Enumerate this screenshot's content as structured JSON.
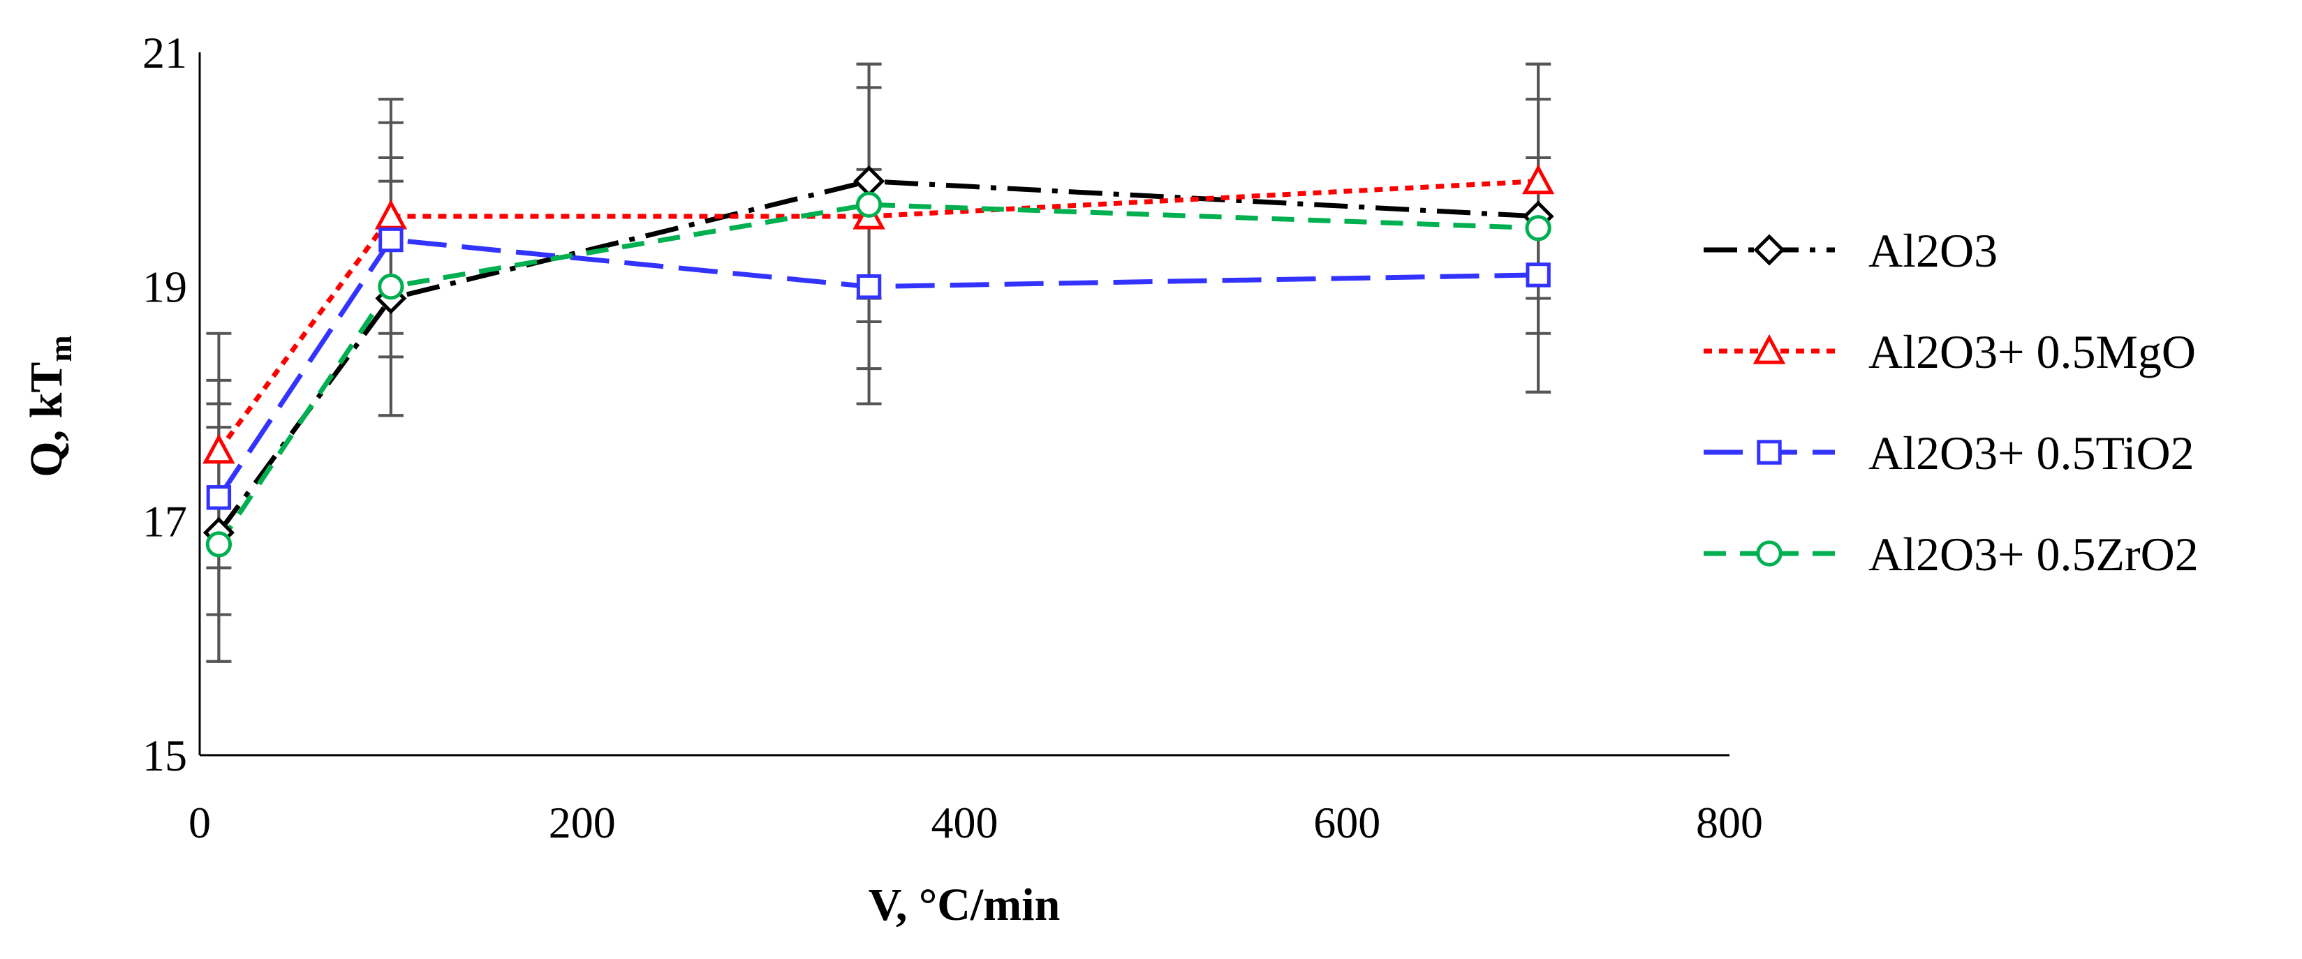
{
  "chart_data": {
    "type": "line",
    "title": "",
    "xlabel": "V, °C/min",
    "ylabel_main": "Q, kT",
    "ylabel_sub": "m",
    "xlim": [
      0,
      800
    ],
    "ylim": [
      15,
      21
    ],
    "xticks": [
      0,
      200,
      400,
      600,
      800
    ],
    "yticks": [
      15,
      17,
      19,
      21
    ],
    "x": [
      10,
      100,
      350,
      700
    ],
    "legend_position": "right",
    "grid": false,
    "series": [
      {
        "name": "Al2O3",
        "color": "#000000",
        "dash": "dashdot",
        "marker": "diamond",
        "values": [
          16.9,
          18.9,
          19.9,
          19.6
        ],
        "errors": [
          1.1,
          1.0,
          1.0,
          1.0
        ]
      },
      {
        "name": "Al2O3+ 0.5MgO",
        "color": "#ff0000",
        "dash": "dot",
        "marker": "triangle",
        "values": [
          17.6,
          19.6,
          19.6,
          19.9
        ],
        "errors": [
          1.0,
          1.0,
          1.3,
          1.0
        ]
      },
      {
        "name": "Al2O3+ 0.5TiO2",
        "color": "#3333ff",
        "dash": "longdash",
        "marker": "square",
        "values": [
          17.2,
          19.4,
          19.0,
          19.1
        ],
        "errors": [
          1.0,
          1.0,
          1.0,
          1.0
        ]
      },
      {
        "name": "Al2O3+ 0.5ZrO2",
        "color": "#00b050",
        "dash": "dash",
        "marker": "circle",
        "values": [
          16.8,
          19.0,
          19.7,
          19.5
        ],
        "errors": [
          1.0,
          1.1,
          1.0,
          1.4
        ]
      }
    ]
  }
}
